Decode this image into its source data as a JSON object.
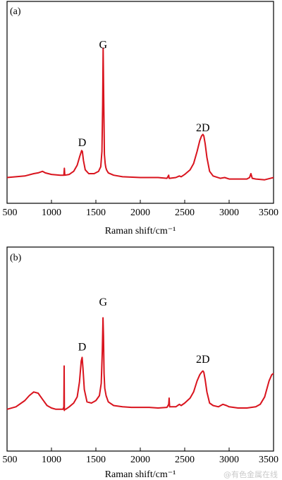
{
  "chart_data": [
    {
      "type": "line",
      "panel_label": "(a)",
      "xlabel": "Raman shift/cm⁻¹",
      "ylabel": "",
      "xlim": [
        500,
        3500
      ],
      "xticks": [
        500,
        1000,
        1500,
        2000,
        2500,
        3000,
        3500
      ],
      "ylim": [
        0,
        1
      ],
      "color": "#d9141e",
      "annotations": [
        {
          "text": "D",
          "x": 1345,
          "y": 0.235
        },
        {
          "text": "G",
          "x": 1582,
          "y": 0.87
        },
        {
          "text": "2D",
          "x": 2705,
          "y": 0.33
        }
      ],
      "series": [
        {
          "x": [
            500,
            600,
            700,
            800,
            850,
            900,
            930,
            1000,
            1100,
            1140,
            1145,
            1150,
            1200,
            1250,
            1290,
            1320,
            1340,
            1348,
            1360,
            1380,
            1420,
            1480,
            1530,
            1555,
            1568,
            1576,
            1582,
            1588,
            1596,
            1605,
            1612,
            1620,
            1640,
            1700,
            1800,
            2000,
            2200,
            2300,
            2320,
            2325,
            2330,
            2400,
            2440,
            2460,
            2500,
            2560,
            2600,
            2640,
            2670,
            2690,
            2705,
            2715,
            2730,
            2750,
            2780,
            2820,
            2900,
            2950,
            3000,
            3100,
            3200,
            3230,
            3245,
            3260,
            3300,
            3400,
            3500
          ],
          "y": [
            0.03,
            0.035,
            0.04,
            0.055,
            0.06,
            0.07,
            0.06,
            0.05,
            0.045,
            0.045,
            0.09,
            0.045,
            0.05,
            0.07,
            0.11,
            0.17,
            0.205,
            0.2,
            0.14,
            0.08,
            0.055,
            0.055,
            0.07,
            0.1,
            0.2,
            0.5,
            0.87,
            0.55,
            0.18,
            0.12,
            0.095,
            0.08,
            0.06,
            0.045,
            0.035,
            0.03,
            0.03,
            0.025,
            0.045,
            0.025,
            0.025,
            0.03,
            0.04,
            0.035,
            0.05,
            0.08,
            0.12,
            0.2,
            0.27,
            0.3,
            0.31,
            0.3,
            0.25,
            0.16,
            0.07,
            0.04,
            0.025,
            0.03,
            0.02,
            0.02,
            0.02,
            0.03,
            0.055,
            0.025,
            0.02,
            0.015,
            0.03
          ]
        }
      ]
    },
    {
      "type": "line",
      "panel_label": "(b)",
      "xlabel": "Raman shift/cm⁻¹",
      "ylabel": "",
      "xlim": [
        500,
        3500
      ],
      "xticks": [
        500,
        1000,
        1500,
        2000,
        2500,
        3000,
        3500
      ],
      "ylim": [
        0,
        1
      ],
      "color": "#d9141e",
      "annotations": [
        {
          "text": "D",
          "x": 1345,
          "y": 0.505
        },
        {
          "text": "G",
          "x": 1582,
          "y": 0.87
        },
        {
          "text": "2D",
          "x": 2705,
          "y": 0.405
        }
      ],
      "series": [
        {
          "x": [
            500,
            600,
            700,
            750,
            800,
            850,
            900,
            950,
            1000,
            1050,
            1100,
            1130,
            1140,
            1143,
            1145,
            1148,
            1150,
            1160,
            1200,
            1250,
            1290,
            1315,
            1335,
            1345,
            1355,
            1370,
            1400,
            1450,
            1500,
            1540,
            1560,
            1572,
            1580,
            1586,
            1592,
            1600,
            1615,
            1640,
            1700,
            1800,
            1900,
            2000,
            2100,
            2200,
            2300,
            2320,
            2325,
            2330,
            2400,
            2440,
            2460,
            2500,
            2560,
            2600,
            2640,
            2670,
            2690,
            2705,
            2715,
            2730,
            2750,
            2780,
            2820,
            2880,
            2930,
            2970,
            3000,
            3100,
            3200,
            3300,
            3350,
            3400,
            3450,
            3480,
            3500
          ],
          "y": [
            0.03,
            0.05,
            0.1,
            0.14,
            0.17,
            0.16,
            0.11,
            0.06,
            0.04,
            0.03,
            0.03,
            0.03,
            0.05,
            0.38,
            0.02,
            0.03,
            0.03,
            0.03,
            0.05,
            0.08,
            0.13,
            0.25,
            0.42,
            0.45,
            0.36,
            0.19,
            0.09,
            0.08,
            0.1,
            0.14,
            0.24,
            0.5,
            0.77,
            0.62,
            0.32,
            0.2,
            0.14,
            0.09,
            0.06,
            0.05,
            0.045,
            0.045,
            0.045,
            0.04,
            0.045,
            0.07,
            0.12,
            0.05,
            0.05,
            0.07,
            0.06,
            0.08,
            0.12,
            0.17,
            0.26,
            0.31,
            0.33,
            0.34,
            0.33,
            0.27,
            0.17,
            0.08,
            0.06,
            0.05,
            0.07,
            0.06,
            0.05,
            0.04,
            0.04,
            0.05,
            0.07,
            0.13,
            0.26,
            0.31,
            0.32
          ]
        }
      ]
    }
  ],
  "watermark": "@有色金属在线"
}
